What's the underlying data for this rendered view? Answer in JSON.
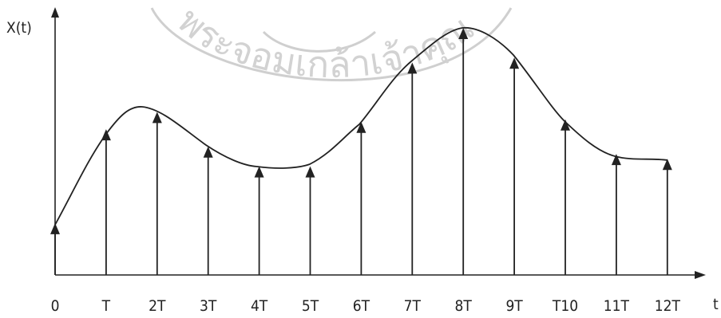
{
  "axes": {
    "y_label": "X(t)",
    "x_label": "t"
  },
  "watermark_text": "พระจอมเกล้าเจ้าคุณ",
  "chart_data": {
    "type": "sampled-signal",
    "x_tick_labels": [
      "0",
      "T",
      "2T",
      "3T",
      "4T",
      "5T",
      "6T",
      "7T",
      "8T",
      "9T",
      "T10",
      "11T",
      "12T"
    ],
    "sample_values": [
      0.21,
      0.59,
      0.66,
      0.52,
      0.44,
      0.44,
      0.62,
      0.86,
      1.0,
      0.88,
      0.63,
      0.49,
      0.47
    ],
    "curve_color": "#222222"
  }
}
